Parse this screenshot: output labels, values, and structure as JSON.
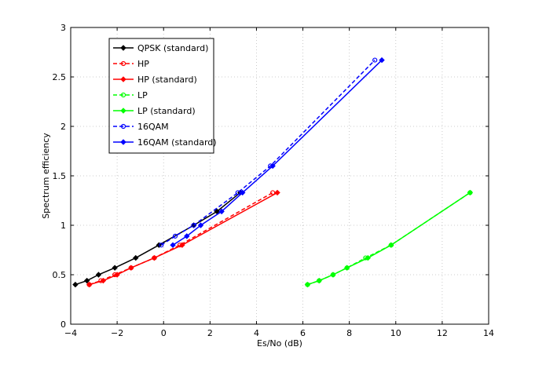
{
  "chart_data": {
    "type": "line",
    "xlabel": "Es/No (dB)",
    "ylabel": "Spectrum efficiency",
    "xlim": [
      -4,
      14
    ],
    "ylim": [
      0,
      3
    ],
    "xticks": [
      -4,
      -2,
      0,
      2,
      4,
      6,
      8,
      10,
      12,
      14
    ],
    "yticks": [
      0,
      0.5,
      1,
      1.5,
      2,
      2.5,
      3
    ],
    "xtick_labels": [
      "−4",
      "−2",
      "0",
      "2",
      "4",
      "6",
      "8",
      "10",
      "12",
      "14"
    ],
    "ytick_labels": [
      "0",
      "0.5",
      "1",
      "1.5",
      "2",
      "2.5",
      "3"
    ],
    "grid": true,
    "legend_position": "top-left",
    "series": [
      {
        "name": "QPSK (standard)",
        "color": "#000000",
        "dash": "solid",
        "marker": "diamond",
        "x": [
          -3.8,
          -3.3,
          -2.8,
          -2.1,
          -1.2,
          -0.2,
          1.3,
          2.3,
          3.3
        ],
        "y": [
          0.4,
          0.44,
          0.5,
          0.57,
          0.67,
          0.8,
          1.0,
          1.14,
          1.33
        ]
      },
      {
        "name": "HP",
        "color": "#ff0000",
        "dash": "dashed",
        "marker": "circle",
        "x": [
          -3.2,
          -2.7,
          -2.1,
          -1.4,
          -0.4,
          0.7,
          4.7
        ],
        "y": [
          0.4,
          0.44,
          0.5,
          0.57,
          0.67,
          0.8,
          1.33
        ]
      },
      {
        "name": "HP (standard)",
        "color": "#ff0000",
        "dash": "solid",
        "marker": "diamond",
        "x": [
          -3.2,
          -2.6,
          -2.0,
          -1.4,
          -0.4,
          0.8,
          4.9
        ],
        "y": [
          0.4,
          0.44,
          0.5,
          0.57,
          0.67,
          0.8,
          1.33
        ]
      },
      {
        "name": "LP",
        "color": "#00ff00",
        "dash": "dashed",
        "marker": "circle",
        "x": [
          6.2,
          6.7,
          7.3,
          7.9,
          8.7,
          9.8,
          13.2
        ],
        "y": [
          0.4,
          0.44,
          0.5,
          0.57,
          0.67,
          0.8,
          1.33
        ]
      },
      {
        "name": "LP (standard)",
        "color": "#00ff00",
        "dash": "solid",
        "marker": "diamond",
        "x": [
          6.2,
          6.7,
          7.3,
          7.9,
          8.8,
          9.8,
          13.2
        ],
        "y": [
          0.4,
          0.44,
          0.5,
          0.57,
          0.67,
          0.8,
          1.33
        ]
      },
      {
        "name": "16QAM",
        "color": "#0000ff",
        "dash": "dashed",
        "marker": "circle",
        "x": [
          -0.1,
          0.5,
          1.3,
          3.2,
          4.6,
          9.1
        ],
        "y": [
          0.8,
          0.89,
          1.0,
          1.33,
          1.6,
          2.67
        ]
      },
      {
        "name": "16QAM (standard)",
        "color": "#0000ff",
        "dash": "solid",
        "marker": "diamond",
        "x": [
          0.4,
          1.0,
          1.6,
          2.5,
          3.4,
          4.7,
          9.4
        ],
        "y": [
          0.8,
          0.89,
          1.0,
          1.14,
          1.33,
          1.6,
          2.67
        ]
      }
    ]
  }
}
